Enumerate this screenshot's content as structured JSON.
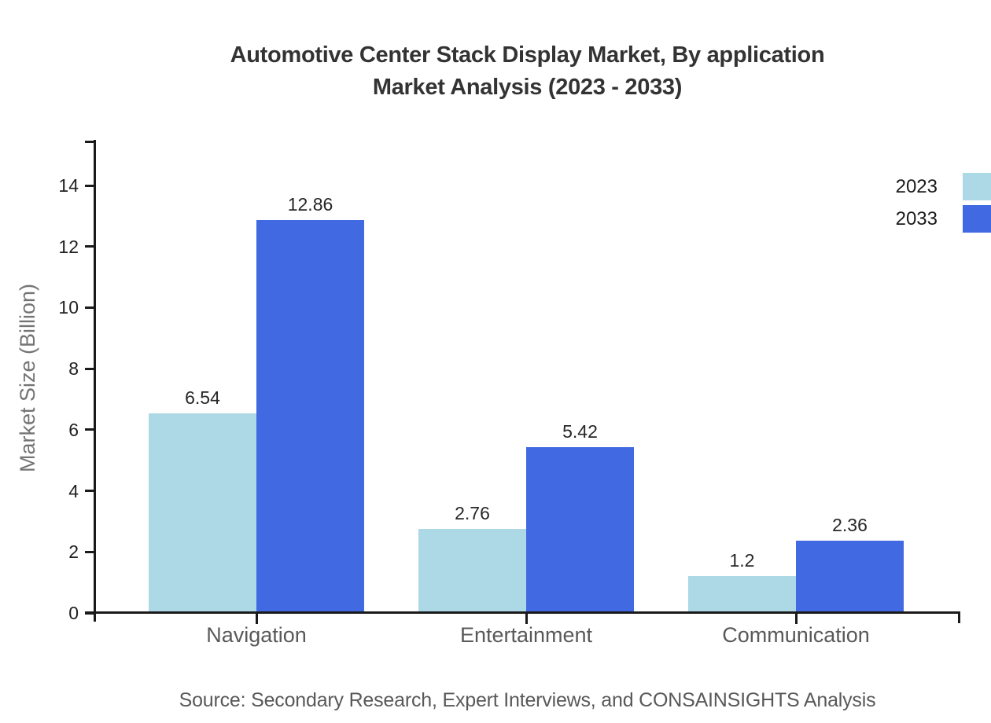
{
  "chart_data": {
    "type": "bar",
    "title": "Automotive Center Stack Display Market, By application Market Analysis (2023 - 2033)",
    "title_lines": [
      "Automotive Center Stack Display Market, By application",
      "Market Analysis (2023 - 2033)"
    ],
    "xlabel": "",
    "ylabel": "Market Size (Billion)",
    "categories": [
      "Navigation",
      "Entertainment",
      "Communication"
    ],
    "series": [
      {
        "name": "2023",
        "color": "#ADD8E6",
        "values": [
          6.54,
          2.76,
          1.2
        ]
      },
      {
        "name": "2033",
        "color": "#4169E1",
        "values": [
          12.86,
          5.42,
          2.36
        ]
      }
    ],
    "yticks": [
      0,
      2,
      4,
      6,
      8,
      10,
      12,
      14
    ],
    "ylim": [
      0,
      15.5
    ],
    "grid": false,
    "bar_value_labels_shown": true,
    "legend_position": "upper-right-outside",
    "source_note": "Source: Secondary Research, Expert Interviews, and CONSAINSIGHTS Analysis"
  },
  "style_colors": {
    "series_2023": "#ADD8E6",
    "series_2033": "#4169E1",
    "title_text": "#333333",
    "axis_and_tick_text": "#1f1f1f",
    "muted_label_text": "#595959",
    "y_axis_title_text": "#747474",
    "axis_line": "#1a1a1a",
    "background": "#ffffff"
  }
}
